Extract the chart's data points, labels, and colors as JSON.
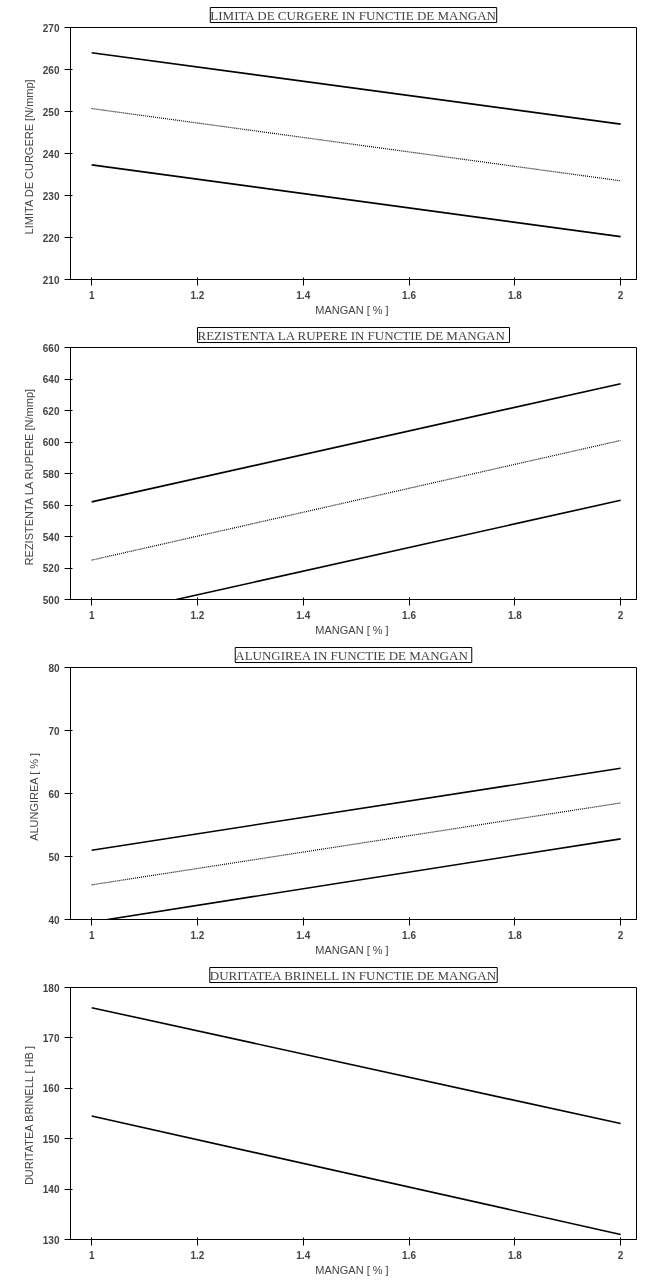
{
  "chart_data": [
    {
      "type": "line",
      "title": "LIMITA DE CURGERE IN FUNCTIE DE MANGAN",
      "xlabel": "MANGAN  [ % ]",
      "ylabel": "LIMITA DE CURGERE   [N/mmp]",
      "xlim": [
        0.96,
        2.03
      ],
      "xticks": [
        1,
        1.2,
        1.4,
        1.6,
        1.8,
        2
      ],
      "ylim": [
        210,
        270
      ],
      "yticks": [
        210,
        220,
        230,
        240,
        250,
        260,
        270
      ],
      "grid": false,
      "marker": "none",
      "series": [
        {
          "color": "#000000",
          "x": [
            1,
            2
          ],
          "values": [
            264,
            247
          ],
          "line_style": "solid"
        },
        {
          "color": "#000000",
          "x": [
            1,
            2
          ],
          "values": [
            250.7,
            233.5
          ],
          "line_style": "dotted"
        },
        {
          "color": "#000000",
          "x": [
            1,
            2
          ],
          "values": [
            237.3,
            220.2
          ],
          "line_style": "solid"
        }
      ]
    },
    {
      "type": "line",
      "title": "REZISTENTA LA RUPERE  IN FUNCTIE DE MANGAN",
      "xlabel": "MANGAN  [ % ]",
      "ylabel": "REZISTENTA LA RUPERE   [N/mmp]",
      "xlim": [
        0.96,
        2.03
      ],
      "xticks": [
        1,
        1.2,
        1.4,
        1.6,
        1.8,
        2
      ],
      "ylim": [
        500,
        660
      ],
      "yticks": [
        500,
        520,
        540,
        560,
        580,
        600,
        620,
        640,
        660
      ],
      "grid": false,
      "marker": "none",
      "series": [
        {
          "color": "#000000",
          "x": [
            1,
            2
          ],
          "values": [
            562,
            637
          ],
          "line_style": "solid"
        },
        {
          "color": "#000000",
          "x": [
            1,
            2
          ],
          "values": [
            525,
            601
          ],
          "line_style": "dotted"
        },
        {
          "color": "#000000",
          "x": [
            1.16,
            2
          ],
          "values": [
            500,
            563
          ],
          "line_style": "solid"
        }
      ]
    },
    {
      "type": "line",
      "title": "ALUNGIREA  IN FUNCTIE DE MANGAN",
      "xlabel": "MANGAN  [ % ]",
      "ylabel": "ALUNGIREA   [ % ]",
      "xlim": [
        0.96,
        2.03
      ],
      "xticks": [
        1,
        1.2,
        1.4,
        1.6,
        1.8,
        2
      ],
      "ylim": [
        40,
        80
      ],
      "yticks": [
        40,
        50,
        60,
        70,
        80
      ],
      "grid": false,
      "marker": "none",
      "series": [
        {
          "color": "#000000",
          "x": [
            1,
            2
          ],
          "values": [
            51,
            64
          ],
          "line_style": "solid"
        },
        {
          "color": "#000000",
          "x": [
            1,
            2
          ],
          "values": [
            45.5,
            58.5
          ],
          "line_style": "dotted"
        },
        {
          "color": "#000000",
          "x": [
            1.03,
            2
          ],
          "values": [
            40,
            52.8
          ],
          "line_style": "solid"
        }
      ]
    },
    {
      "type": "line",
      "title": "DURITATEA BRINELL IN FUNCTIE DE MANGAN",
      "xlabel": "MANGAN  [ % ]",
      "ylabel": "DURITATEA BRINELL  [ HB ]",
      "xlim": [
        0.96,
        2.03
      ],
      "xticks": [
        1,
        1.2,
        1.4,
        1.6,
        1.8,
        2
      ],
      "ylim": [
        130,
        180
      ],
      "yticks": [
        130,
        140,
        150,
        160,
        170,
        180
      ],
      "grid": false,
      "marker": "none",
      "series": [
        {
          "color": "#000000",
          "x": [
            1,
            2
          ],
          "values": [
            176,
            153
          ],
          "line_style": "solid"
        },
        {
          "color": "#000000",
          "x": [
            1,
            2
          ],
          "values": [
            154.5,
            131
          ],
          "line_style": "solid"
        }
      ]
    }
  ]
}
